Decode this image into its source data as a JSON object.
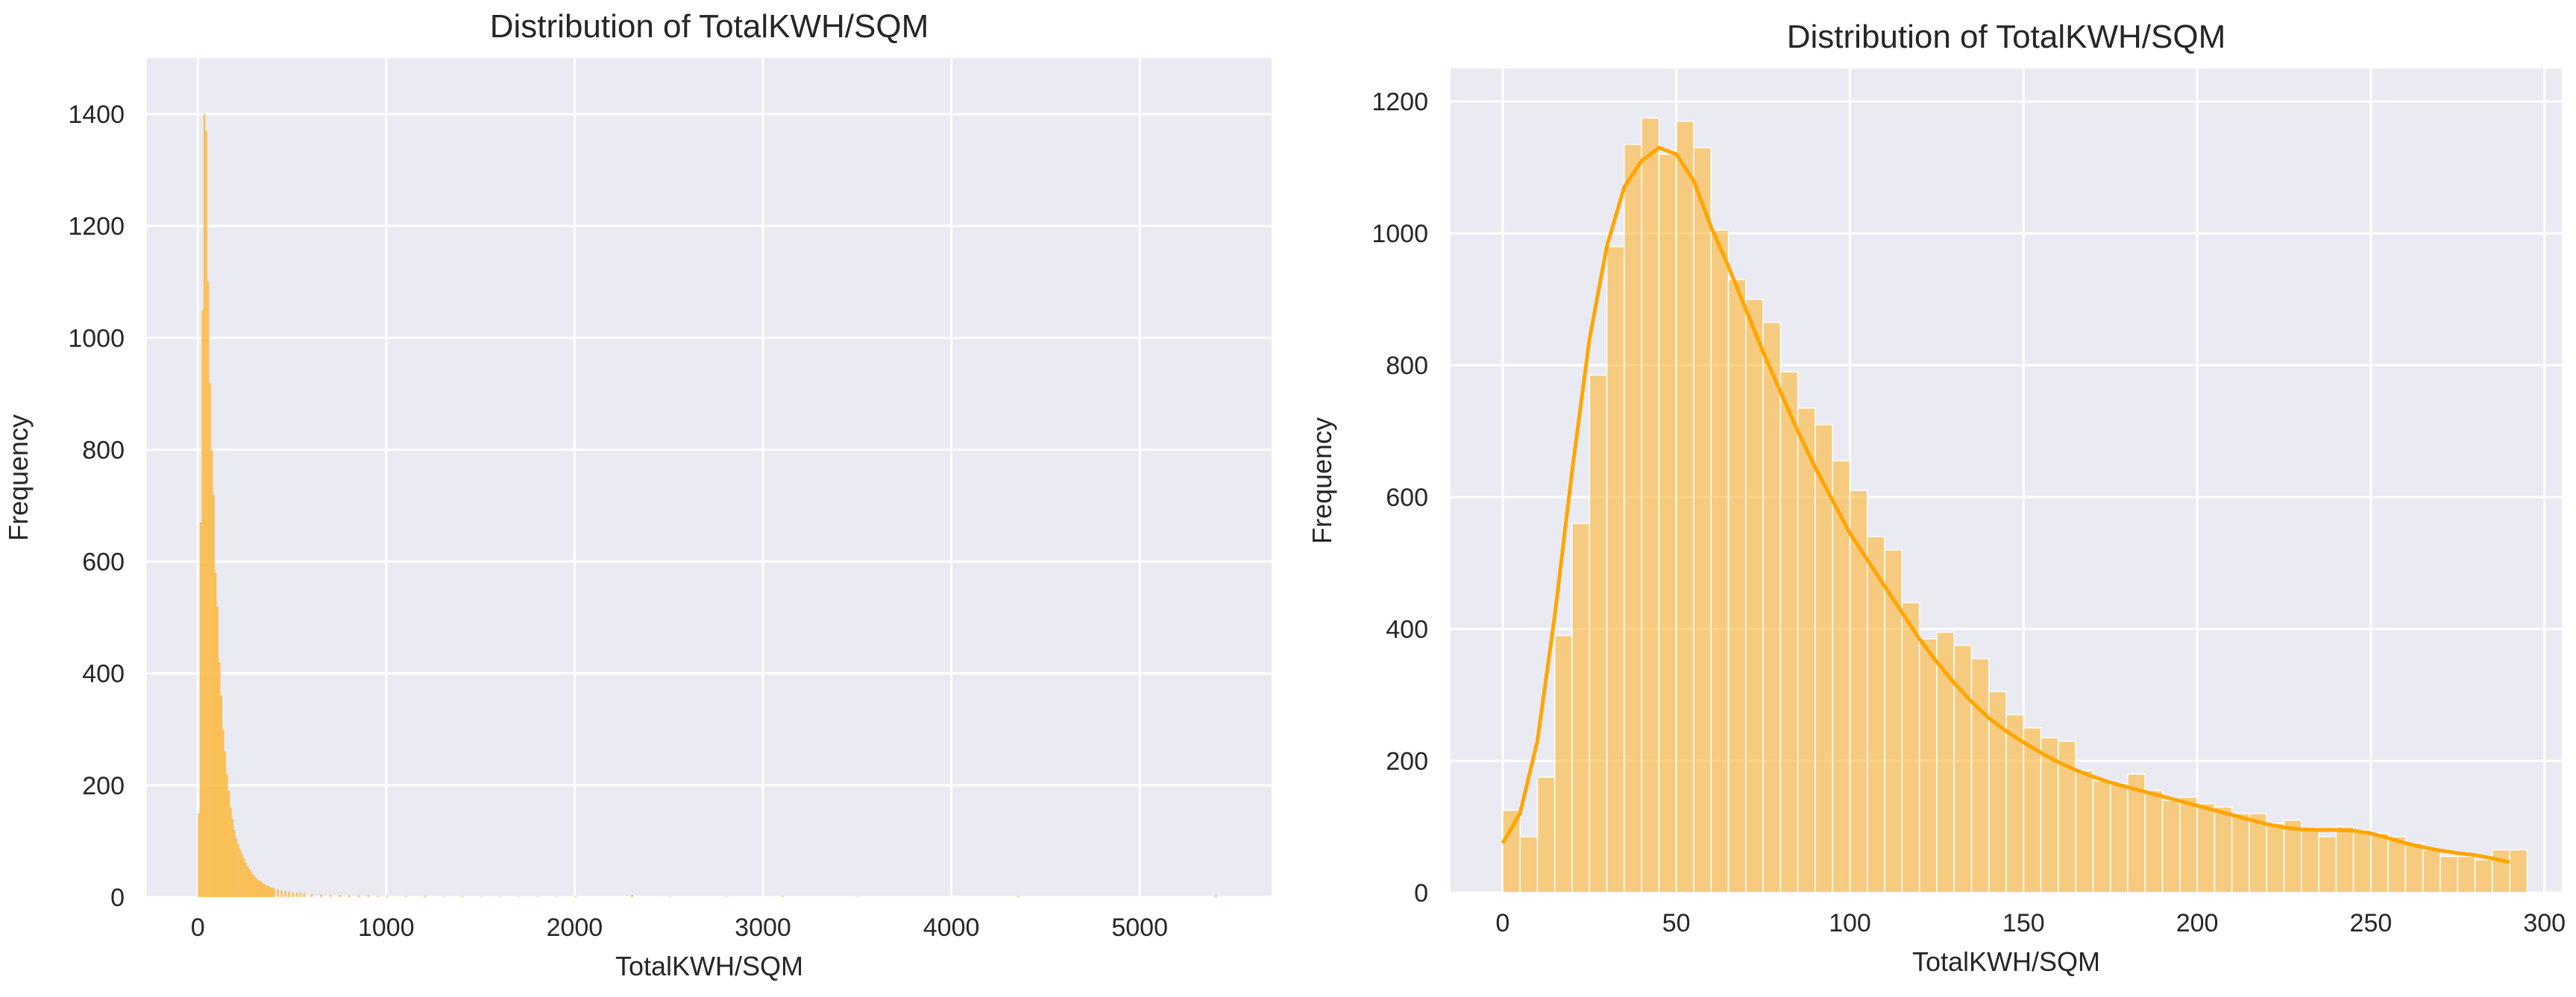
{
  "colors": {
    "plot_background": "#eaeaf2",
    "grid": "#ffffff",
    "bar_fill": "#ffb020",
    "kde_line": "#ffa500",
    "text": "#262626"
  },
  "chart_data": [
    {
      "type": "bar",
      "title": "Distribution of TotalKWH/SQM",
      "xlabel": "TotalKWH/SQM",
      "ylabel": "Frequency",
      "xlim": [
        -270,
        5700
      ],
      "ylim": [
        0,
        1500
      ],
      "xticks": [
        0,
        1000,
        2000,
        3000,
        4000,
        5000
      ],
      "yticks": [
        0,
        200,
        400,
        600,
        800,
        1000,
        1200,
        1400
      ],
      "xtick_labels": [
        "0",
        "1000",
        "2000",
        "3000",
        "4000",
        "5000"
      ],
      "ytick_labels": [
        "0",
        "200",
        "400",
        "600",
        "800",
        "1000",
        "1200",
        "1400"
      ],
      "grid": true,
      "bin_width": 10,
      "bins": [
        [
          0,
          150
        ],
        [
          10,
          670
        ],
        [
          20,
          1050
        ],
        [
          30,
          1400
        ],
        [
          40,
          1370
        ],
        [
          50,
          1100
        ],
        [
          60,
          920
        ],
        [
          70,
          800
        ],
        [
          80,
          720
        ],
        [
          90,
          580
        ],
        [
          100,
          520
        ],
        [
          110,
          420
        ],
        [
          120,
          360
        ],
        [
          130,
          300
        ],
        [
          140,
          260
        ],
        [
          150,
          220
        ],
        [
          160,
          190
        ],
        [
          170,
          160
        ],
        [
          180,
          140
        ],
        [
          190,
          120
        ],
        [
          200,
          105
        ],
        [
          210,
          95
        ],
        [
          220,
          85
        ],
        [
          230,
          78
        ],
        [
          240,
          70
        ],
        [
          250,
          62
        ],
        [
          260,
          55
        ],
        [
          270,
          50
        ],
        [
          280,
          45
        ],
        [
          290,
          40
        ],
        [
          300,
          36
        ],
        [
          310,
          33
        ],
        [
          320,
          30
        ],
        [
          330,
          28
        ],
        [
          340,
          25
        ],
        [
          350,
          23
        ],
        [
          360,
          21
        ],
        [
          370,
          20
        ],
        [
          380,
          18
        ],
        [
          390,
          17
        ],
        [
          400,
          16
        ],
        [
          420,
          14
        ],
        [
          440,
          12
        ],
        [
          460,
          11
        ],
        [
          480,
          10
        ],
        [
          500,
          9
        ],
        [
          520,
          8
        ],
        [
          540,
          8
        ],
        [
          560,
          7
        ],
        [
          600,
          6
        ],
        [
          650,
          5
        ],
        [
          700,
          4
        ],
        [
          750,
          4
        ],
        [
          800,
          3
        ],
        [
          850,
          3
        ],
        [
          900,
          3
        ],
        [
          950,
          2
        ],
        [
          1000,
          2
        ],
        [
          1100,
          2
        ],
        [
          1200,
          2
        ],
        [
          1300,
          1
        ],
        [
          1400,
          2
        ],
        [
          1500,
          1
        ],
        [
          1600,
          1
        ],
        [
          1700,
          1
        ],
        [
          1800,
          1
        ],
        [
          1900,
          1
        ],
        [
          2000,
          2
        ],
        [
          2300,
          4
        ],
        [
          2500,
          1
        ],
        [
          2800,
          1
        ],
        [
          3100,
          2
        ],
        [
          3500,
          1
        ],
        [
          4350,
          2
        ],
        [
          5400,
          3
        ]
      ]
    },
    {
      "type": "bar",
      "title": "Distribution of TotalKWH/SQM",
      "xlabel": "TotalKWH/SQM",
      "ylabel": "Frequency",
      "xlim": [
        -15,
        305
      ],
      "ylim": [
        0,
        1250
      ],
      "xticks": [
        0,
        50,
        100,
        150,
        200,
        250,
        300
      ],
      "yticks": [
        0,
        200,
        400,
        600,
        800,
        1000,
        1200
      ],
      "xtick_labels": [
        "0",
        "50",
        "100",
        "150",
        "200",
        "250",
        "300"
      ],
      "ytick_labels": [
        "0",
        "200",
        "400",
        "600",
        "800",
        "1000",
        "1200"
      ],
      "grid": true,
      "bin_width": 5,
      "bins": [
        [
          0,
          125
        ],
        [
          5,
          85
        ],
        [
          10,
          175
        ],
        [
          15,
          390
        ],
        [
          20,
          560
        ],
        [
          25,
          785
        ],
        [
          30,
          980
        ],
        [
          35,
          1135
        ],
        [
          40,
          1175
        ],
        [
          45,
          1120
        ],
        [
          50,
          1170
        ],
        [
          55,
          1130
        ],
        [
          60,
          1005
        ],
        [
          65,
          930
        ],
        [
          70,
          900
        ],
        [
          75,
          865
        ],
        [
          80,
          790
        ],
        [
          85,
          735
        ],
        [
          90,
          710
        ],
        [
          95,
          655
        ],
        [
          100,
          610
        ],
        [
          105,
          540
        ],
        [
          110,
          520
        ],
        [
          115,
          440
        ],
        [
          120,
          385
        ],
        [
          125,
          395
        ],
        [
          130,
          375
        ],
        [
          135,
          355
        ],
        [
          140,
          305
        ],
        [
          145,
          270
        ],
        [
          150,
          250
        ],
        [
          155,
          235
        ],
        [
          160,
          230
        ],
        [
          165,
          185
        ],
        [
          170,
          170
        ],
        [
          175,
          165
        ],
        [
          180,
          180
        ],
        [
          185,
          155
        ],
        [
          190,
          140
        ],
        [
          195,
          145
        ],
        [
          200,
          135
        ],
        [
          205,
          130
        ],
        [
          210,
          120
        ],
        [
          215,
          120
        ],
        [
          220,
          105
        ],
        [
          225,
          110
        ],
        [
          230,
          95
        ],
        [
          235,
          85
        ],
        [
          240,
          100
        ],
        [
          245,
          95
        ],
        [
          250,
          90
        ],
        [
          255,
          85
        ],
        [
          260,
          75
        ],
        [
          265,
          65
        ],
        [
          270,
          55
        ],
        [
          275,
          55
        ],
        [
          280,
          50
        ],
        [
          285,
          65
        ],
        [
          290,
          65
        ]
      ],
      "kde": {
        "x": [
          0,
          5,
          10,
          15,
          20,
          25,
          30,
          35,
          40,
          45,
          50,
          55,
          60,
          65,
          70,
          75,
          80,
          85,
          90,
          95,
          100,
          105,
          110,
          115,
          120,
          125,
          130,
          135,
          140,
          145,
          150,
          155,
          160,
          165,
          170,
          175,
          180,
          185,
          190,
          195,
          200,
          205,
          210,
          215,
          220,
          225,
          230,
          235,
          240,
          245,
          250,
          255,
          260,
          265,
          270,
          275,
          280,
          285,
          290
        ],
        "y": [
          75,
          120,
          230,
          420,
          640,
          840,
          980,
          1070,
          1110,
          1130,
          1120,
          1080,
          1010,
          950,
          885,
          820,
          760,
          700,
          645,
          595,
          545,
          505,
          465,
          425,
          385,
          350,
          318,
          290,
          265,
          245,
          228,
          212,
          198,
          186,
          176,
          167,
          160,
          153,
          146,
          139,
          132,
          125,
          118,
          111,
          104,
          99,
          96,
          95,
          95,
          94,
          90,
          83,
          75,
          69,
          64,
          60,
          57,
          52,
          46
        ]
      }
    }
  ]
}
